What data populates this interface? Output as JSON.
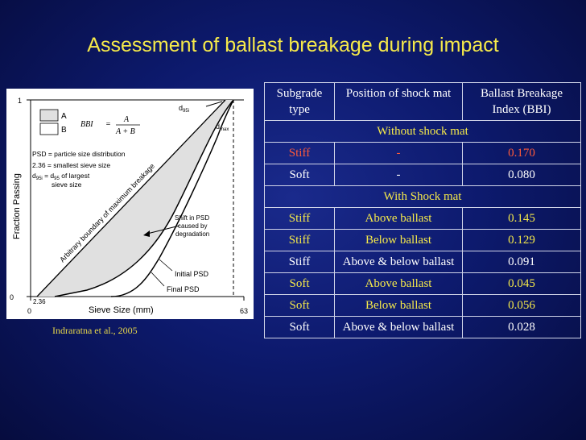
{
  "slide": {
    "title": "Assessment of ballast breakage during impact",
    "citation": "Indraratna et al., 2005"
  },
  "diagram": {
    "y_axis_label": "Fraction Passing",
    "x_axis_label": "Sieve Size (mm)",
    "y_tick_top": "1",
    "y_tick_bottom": "0",
    "x_tick_left": "0",
    "x_tick_right": "63",
    "x_tick_236": "2.36",
    "legend_a": "A",
    "legend_b": "B",
    "formula_lhs": "BBI",
    "formula_eq": "=",
    "formula_num": "A",
    "formula_den": "A + B",
    "note_psd": "PSD = particle size distribution",
    "note_236": "2.36 = smallest sieve size",
    "note_d95_prefix": "d",
    "note_d95_sub": "95i",
    "note_d95_mid": " = d",
    "note_d95_sub2": "95",
    "note_d95_suffix": " of largest",
    "note_d95_line2": "sieve size",
    "label_boundary": "Arbitrary boundary of maximum breakage",
    "label_d95i": "d",
    "label_d95i_sub": "95i",
    "label_dmax": "d",
    "label_dmax_sub": "max",
    "label_shift_1": "Shift in PSD",
    "label_shift_2": "caused by",
    "label_shift_3": "degradation",
    "label_initial": "Initial PSD",
    "label_final": "Final PSD",
    "colors": {
      "region_a": "#e0e0e0",
      "line": "#000000"
    }
  },
  "table": {
    "headers": [
      "Subgrade type",
      "Position of shock mat",
      "Ballast Breakage Index (BBI)"
    ],
    "section_without": "Without shock mat",
    "section_with": "With Shock mat",
    "rows_without": [
      {
        "subgrade": "Stiff",
        "position": "-",
        "bbi": "0.170"
      },
      {
        "subgrade": "Soft",
        "position": "-",
        "bbi": "0.080"
      }
    ],
    "rows_with": [
      {
        "subgrade": "Stiff",
        "position": "Above ballast",
        "bbi": "0.145"
      },
      {
        "subgrade": "Stiff",
        "position": "Below ballast",
        "bbi": "0.129"
      },
      {
        "subgrade": "Stiff",
        "position": "Above & below ballast",
        "bbi": "0.091"
      },
      {
        "subgrade": "Soft",
        "position": "Above ballast",
        "bbi": "0.045"
      },
      {
        "subgrade": "Soft",
        "position": "Below ballast",
        "bbi": "0.056"
      },
      {
        "subgrade": "Soft",
        "position": "Above & below ballast",
        "bbi": "0.028"
      }
    ],
    "colors": {
      "highlight": "#ff5a3a",
      "header_text": "#ffffff",
      "section_text": "#f5e94a"
    }
  }
}
